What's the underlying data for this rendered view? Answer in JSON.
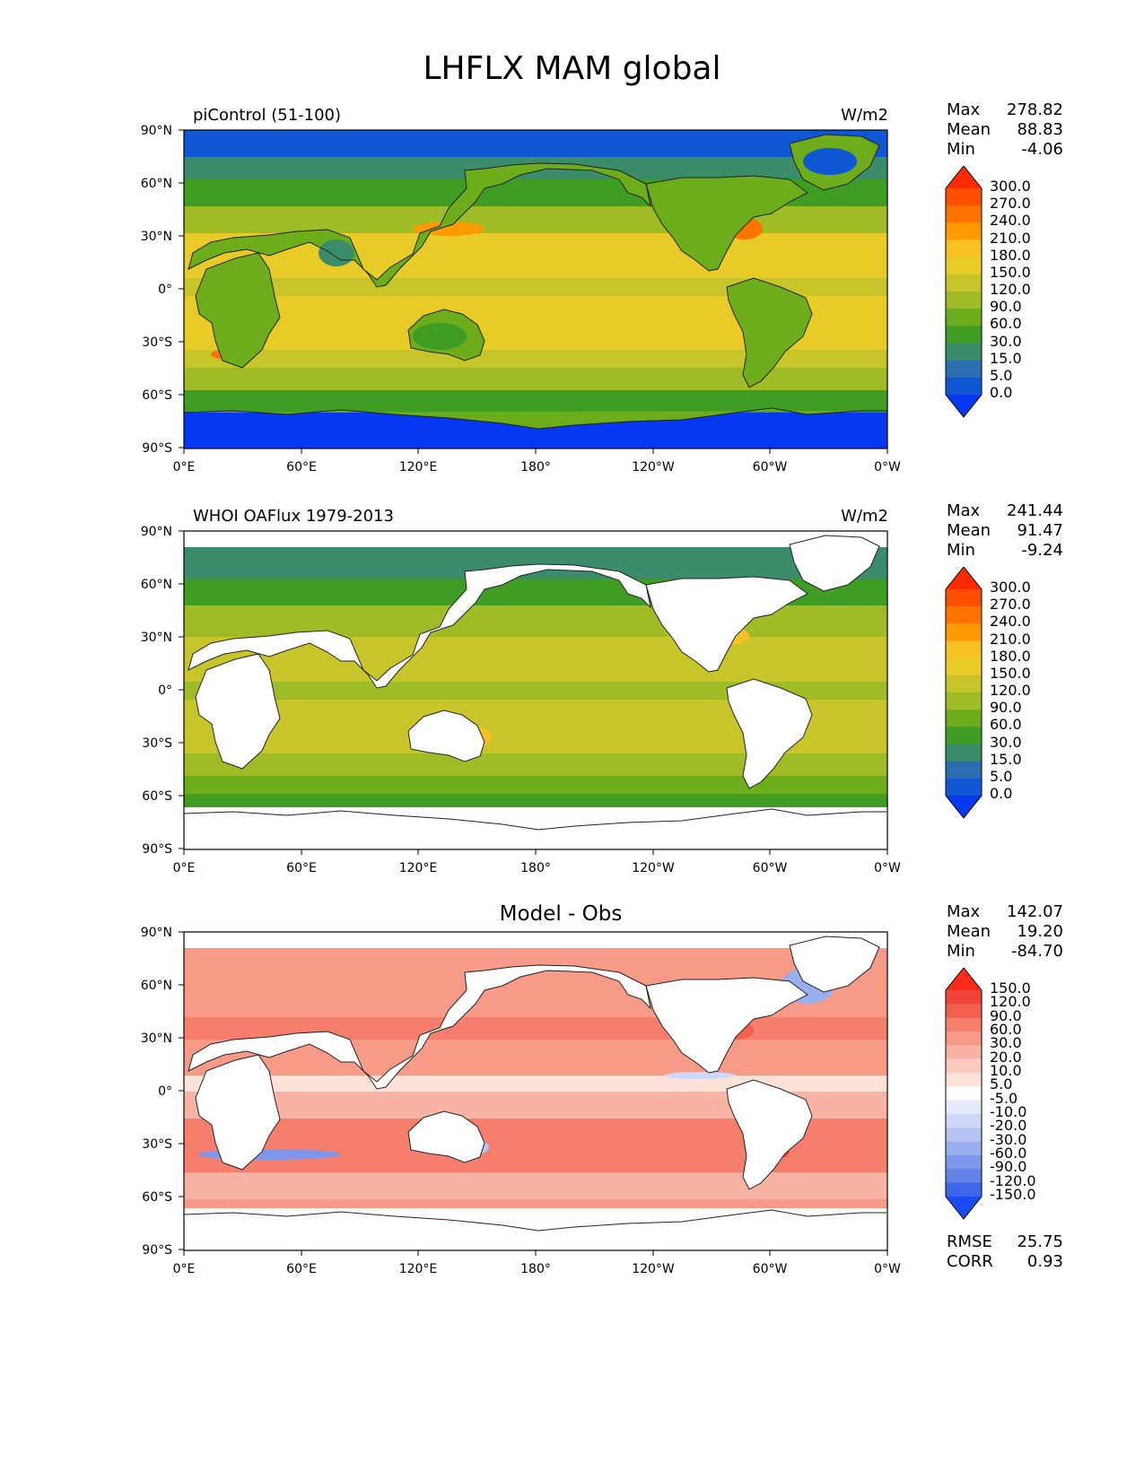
{
  "title": "LHFLX MAM global",
  "axes": {
    "yticks": [
      "90°N",
      "60°N",
      "30°N",
      "0°",
      "30°S",
      "60°S",
      "90°S"
    ],
    "xticks": [
      "0°E",
      "60°E",
      "120°E",
      "180°",
      "120°W",
      "60°W",
      "0°W"
    ]
  },
  "panels": [
    {
      "id": "model",
      "left_title": "piControl (51-100)",
      "units": "W/m2",
      "center_title": "",
      "stats": [
        {
          "label": "Max",
          "value": "278.82"
        },
        {
          "label": "Mean",
          "value": "88.83"
        },
        {
          "label": "Min",
          "value": "-4.06"
        }
      ],
      "colorbar": {
        "labels": [
          "300.0",
          "270.0",
          "240.0",
          "210.0",
          "180.0",
          "150.0",
          "120.0",
          "90.0",
          "60.0",
          "30.0",
          "15.0",
          "5.0",
          "0.0"
        ],
        "colors": [
          "#ff2a00",
          "#ff4f00",
          "#ff7400",
          "#ff9a00",
          "#f7c025",
          "#e9cb28",
          "#c7c52a",
          "#9fbb26",
          "#6dad1c",
          "#3e9d22",
          "#3a8c6b",
          "#2b6fb2",
          "#1057d6",
          "#0538f0"
        ]
      }
    },
    {
      "id": "obs",
      "left_title": "WHOI OAFlux 1979-2013",
      "units": "W/m2",
      "center_title": "",
      "stats": [
        {
          "label": "Max",
          "value": "241.44"
        },
        {
          "label": "Mean",
          "value": "91.47"
        },
        {
          "label": "Min",
          "value": "-9.24"
        }
      ],
      "colorbar": {
        "labels": [
          "300.0",
          "270.0",
          "240.0",
          "210.0",
          "180.0",
          "150.0",
          "120.0",
          "90.0",
          "60.0",
          "30.0",
          "15.0",
          "5.0",
          "0.0"
        ],
        "colors": [
          "#ff2a00",
          "#ff4f00",
          "#ff7400",
          "#ff9a00",
          "#f7c025",
          "#e9cb28",
          "#c7c52a",
          "#9fbb26",
          "#6dad1c",
          "#3e9d22",
          "#3a8c6b",
          "#2b6fb2",
          "#1057d6",
          "#0538f0"
        ]
      }
    },
    {
      "id": "diff",
      "left_title": "",
      "units": "",
      "center_title": "Model - Obs",
      "stats": [
        {
          "label": "Max",
          "value": "142.07"
        },
        {
          "label": "Mean",
          "value": "19.20"
        },
        {
          "label": "Min",
          "value": "-84.70"
        }
      ],
      "colorbar": {
        "labels": [
          "150.0",
          "120.0",
          "90.0",
          "60.0",
          "30.0",
          "20.0",
          "10.0",
          "5.0",
          "-5.0",
          "-10.0",
          "-20.0",
          "-30.0",
          "-60.0",
          "-90.0",
          "-120.0",
          "-150.0"
        ],
        "colors": [
          "#ff2a1a",
          "#f2433a",
          "#f36050",
          "#f57e6c",
          "#f79a88",
          "#f9b3a4",
          "#fbcbbf",
          "#fde2da",
          "#ffffff",
          "#e4e9fb",
          "#cfd8f8",
          "#b5c4f4",
          "#99aeef",
          "#7e97ea",
          "#6381e6",
          "#3d66ea",
          "#1a4cf5"
        ]
      },
      "error_stats": [
        {
          "label": "RMSE",
          "value": "25.75"
        },
        {
          "label": "CORR",
          "value": "0.93"
        }
      ]
    }
  ]
}
